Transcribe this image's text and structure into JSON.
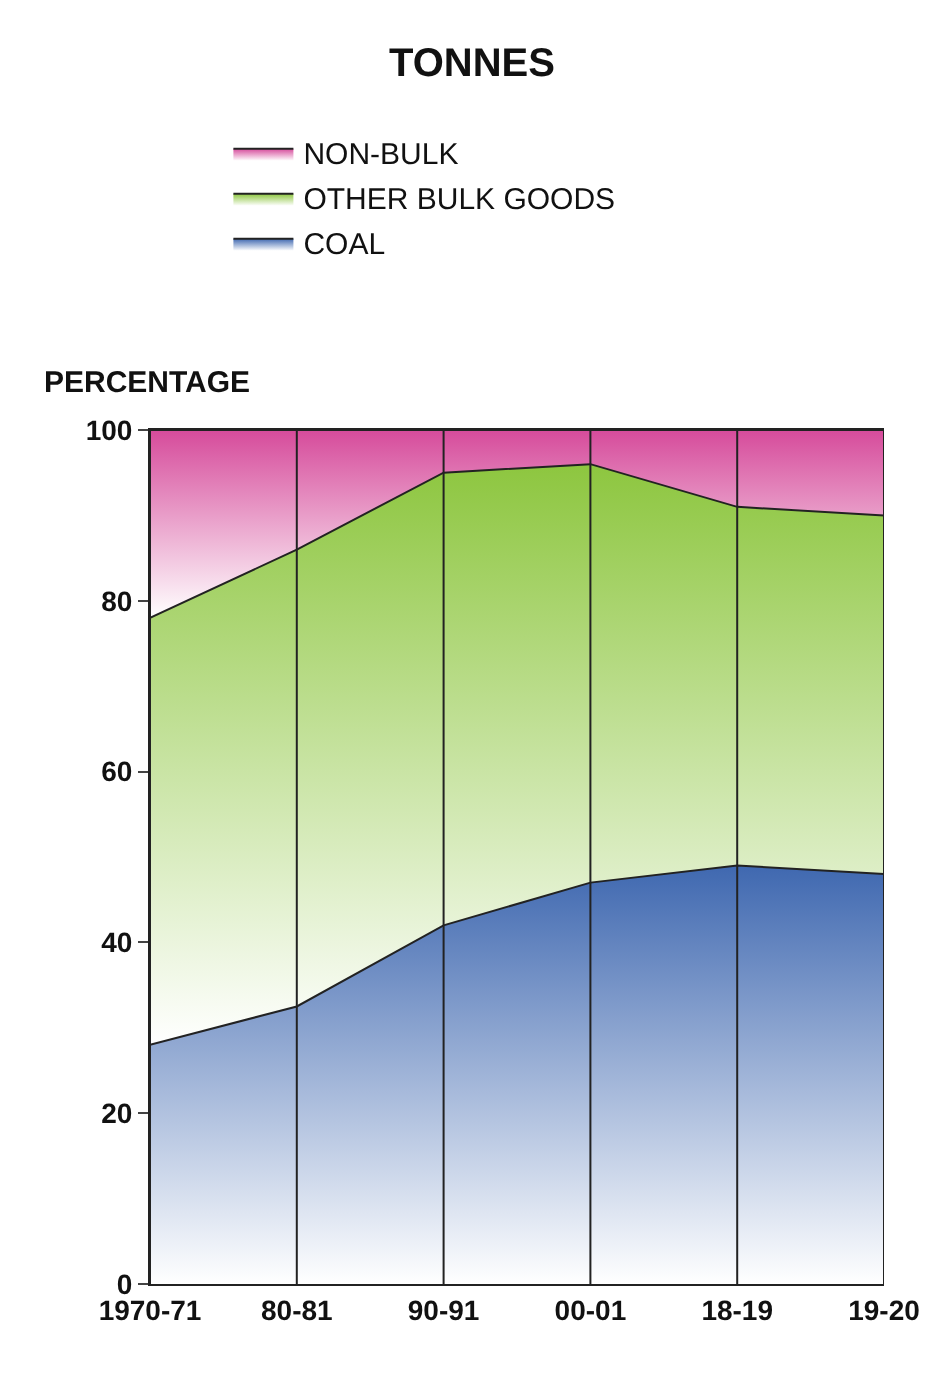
{
  "chart_data": {
    "type": "area",
    "title": "TONNES",
    "ylabel": "PERCENTAGE",
    "stacked": true,
    "categories": [
      "1970-71",
      "80-81",
      "90-91",
      "00-01",
      "18-19",
      "19-20"
    ],
    "series": [
      {
        "name": "COAL",
        "color": "#3f68b0",
        "values": [
          28,
          32.5,
          42,
          47,
          49,
          48
        ]
      },
      {
        "name": "OTHER BULK GOODS",
        "color": "#8dc63f",
        "values": [
          50,
          53.5,
          53,
          49,
          42,
          42
        ]
      },
      {
        "name": "NON-BULK",
        "color": "#d64b9b",
        "values": [
          22,
          14,
          5,
          4,
          9,
          10
        ]
      }
    ],
    "ylim": [
      0,
      100
    ],
    "yticks": [
      0,
      20,
      40,
      60,
      80,
      100
    ],
    "grid": "x",
    "legend": "top left"
  }
}
